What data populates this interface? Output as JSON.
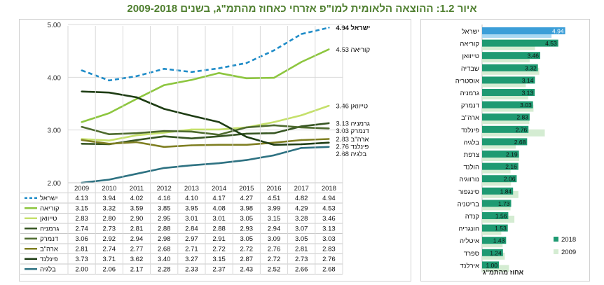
{
  "title": "איור 1.2: ההוצאה הלאומית למו\"פ אזרחי כאחוז מהתמ\"ג, בשנים 2009-2018",
  "chart_data": [
    {
      "type": "line",
      "x": [
        "2009",
        "2010",
        "2011",
        "2012",
        "2013",
        "2014",
        "2015",
        "2016",
        "2017",
        "2018"
      ],
      "ylim": [
        2.0,
        5.0
      ],
      "yticks": [
        "2.00",
        "3.00",
        "4.00",
        "5.00"
      ],
      "series": [
        {
          "name": "ישראל",
          "color": "#1f8cc8",
          "dashed": true,
          "end_label": "ישראל 4.94",
          "values": [
            4.13,
            3.94,
            4.02,
            4.16,
            4.1,
            4.17,
            4.27,
            4.51,
            4.82,
            4.94
          ]
        },
        {
          "name": "קוריאה",
          "color": "#8dc63f",
          "dashed": false,
          "end_label": "4.53 קוריאה",
          "values": [
            3.15,
            3.32,
            3.59,
            3.85,
            3.95,
            4.08,
            3.98,
            3.99,
            4.29,
            4.53
          ]
        },
        {
          "name": "טייוואן",
          "color": "#c5e06b",
          "dashed": false,
          "end_label": "3.46 טייוואן",
          "values": [
            2.83,
            2.8,
            2.9,
            2.95,
            3.01,
            3.01,
            3.05,
            3.15,
            3.28,
            3.46
          ]
        },
        {
          "name": "גרמניה",
          "color": "#375623",
          "dashed": false,
          "end_label": "3.13 גרמניה",
          "values": [
            2.74,
            2.73,
            2.81,
            2.88,
            2.84,
            2.88,
            2.93,
            2.94,
            3.07,
            3.13
          ]
        },
        {
          "name": "דנמרק",
          "color": "#4e6b2f",
          "dashed": false,
          "end_label": "3.03 דנמרק",
          "values": [
            3.06,
            2.92,
            2.94,
            2.98,
            2.97,
            2.91,
            3.05,
            3.09,
            3.05,
            3.03
          ]
        },
        {
          "name": "ארה\"ב",
          "color": "#7f7f22",
          "dashed": false,
          "end_label": "2.83 ארה\"ב",
          "values": [
            2.81,
            2.74,
            2.77,
            2.68,
            2.71,
            2.72,
            2.72,
            2.76,
            2.81,
            2.83
          ]
        },
        {
          "name": "פינלנד",
          "color": "#1e3d14",
          "dashed": false,
          "end_label": "2.76 פינלנד",
          "values": [
            3.73,
            3.71,
            3.62,
            3.4,
            3.27,
            3.15,
            2.87,
            2.72,
            2.73,
            2.76
          ]
        },
        {
          "name": "בלגיה",
          "color": "#2e7282",
          "dashed": false,
          "end_label": "2.68 בלגיה",
          "values": [
            2.0,
            2.06,
            2.17,
            2.28,
            2.33,
            2.37,
            2.43,
            2.52,
            2.66,
            2.68
          ]
        }
      ],
      "table": {
        "rows": [
          {
            "name": "ישראל",
            "values": [
              "4.13",
              "3.94",
              "4.02",
              "4.16",
              "4.10",
              "4.17",
              "4.27",
              "4.51",
              "4.82",
              "4.94"
            ]
          },
          {
            "name": "קוריאה",
            "values": [
              "3.15",
              "3.32",
              "3.59",
              "3.85",
              "3.95",
              "4.08",
              "3.98",
              "3.99",
              "4.29",
              "4.53"
            ]
          },
          {
            "name": "טייוואן",
            "values": [
              "2.83",
              "2.80",
              "2.90",
              "2.95",
              "3.01",
              "3.01",
              "3.05",
              "3.15",
              "3.28",
              "3.46"
            ]
          },
          {
            "name": "גרמניה",
            "values": [
              "2.74",
              "2.73",
              "2.81",
              "2.88",
              "2.84",
              "2.88",
              "2.93",
              "2.94",
              "3.07",
              "3.13"
            ]
          },
          {
            "name": "דנמרק",
            "values": [
              "3.06",
              "2.92",
              "2.94",
              "2.98",
              "2.97",
              "2.91",
              "3.05",
              "3.09",
              "3.05",
              "3.03"
            ]
          },
          {
            "name": "ארה\"ב",
            "values": [
              "2.81",
              "2.74",
              "2.77",
              "2.68",
              "2.71",
              "2.72",
              "2.72",
              "2.76",
              "2.81",
              "2.83"
            ]
          },
          {
            "name": "פינלנד",
            "values": [
              "3.73",
              "3.71",
              "3.62",
              "3.40",
              "3.27",
              "3.15",
              "2.87",
              "2.72",
              "2.73",
              "2.76"
            ]
          },
          {
            "name": "בלגיה",
            "values": [
              "2.00",
              "2.06",
              "2.17",
              "2.28",
              "2.33",
              "2.37",
              "2.43",
              "2.52",
              "2.66",
              "2.68"
            ]
          }
        ]
      }
    },
    {
      "type": "bar",
      "orientation": "horizontal",
      "xlabel": "אחוז מהתמ\"ג",
      "xlim": [
        0,
        5.0
      ],
      "categories": [
        "ישראל",
        "קוריאה",
        "טייוואן",
        "שבדיה",
        "אוסטריה",
        "גרמניה",
        "דנמרק",
        "ארה\"ב",
        "פינלנד",
        "בלגיה",
        "צרפת",
        "הולנד",
        "נורווגיה",
        "סינגפור",
        "בריטניה",
        "קנדה",
        "הונגריה",
        "איטליה",
        "ספרד",
        "אירלנד"
      ],
      "series": [
        {
          "name": "2018",
          "color": "#1e9a72",
          "values": [
            4.94,
            4.53,
            3.46,
            3.32,
            3.14,
            3.13,
            3.03,
            2.83,
            2.76,
            2.68,
            2.19,
            2.16,
            2.06,
            1.84,
            1.73,
            1.56,
            1.53,
            1.43,
            1.24,
            1.0
          ],
          "labels": [
            "4.94",
            "4.53",
            "3.46",
            "3.32",
            "3.14",
            "3.13",
            "3.03",
            "2.83",
            "2.76",
            "2.68",
            "2.19",
            "2.16",
            "2.06",
            "1.84",
            "1.73",
            "1.56",
            "1.53",
            "1.43",
            "1.24",
            "1.00"
          ]
        },
        {
          "name": "2009",
          "color": "#d4ecd2",
          "values": [
            4.13,
            3.15,
            2.83,
            3.4,
            2.6,
            2.74,
            3.06,
            2.81,
            3.73,
            2.0,
            2.21,
            1.69,
            1.72,
            2.16,
            1.69,
            1.92,
            1.14,
            1.22,
            1.35,
            1.6
          ]
        }
      ],
      "highlight": {
        "category": "ישראל",
        "color_2018": "#3b9ed8",
        "color_2009": "#a9d8f2"
      },
      "legend": [
        "2018",
        "2009"
      ]
    }
  ]
}
